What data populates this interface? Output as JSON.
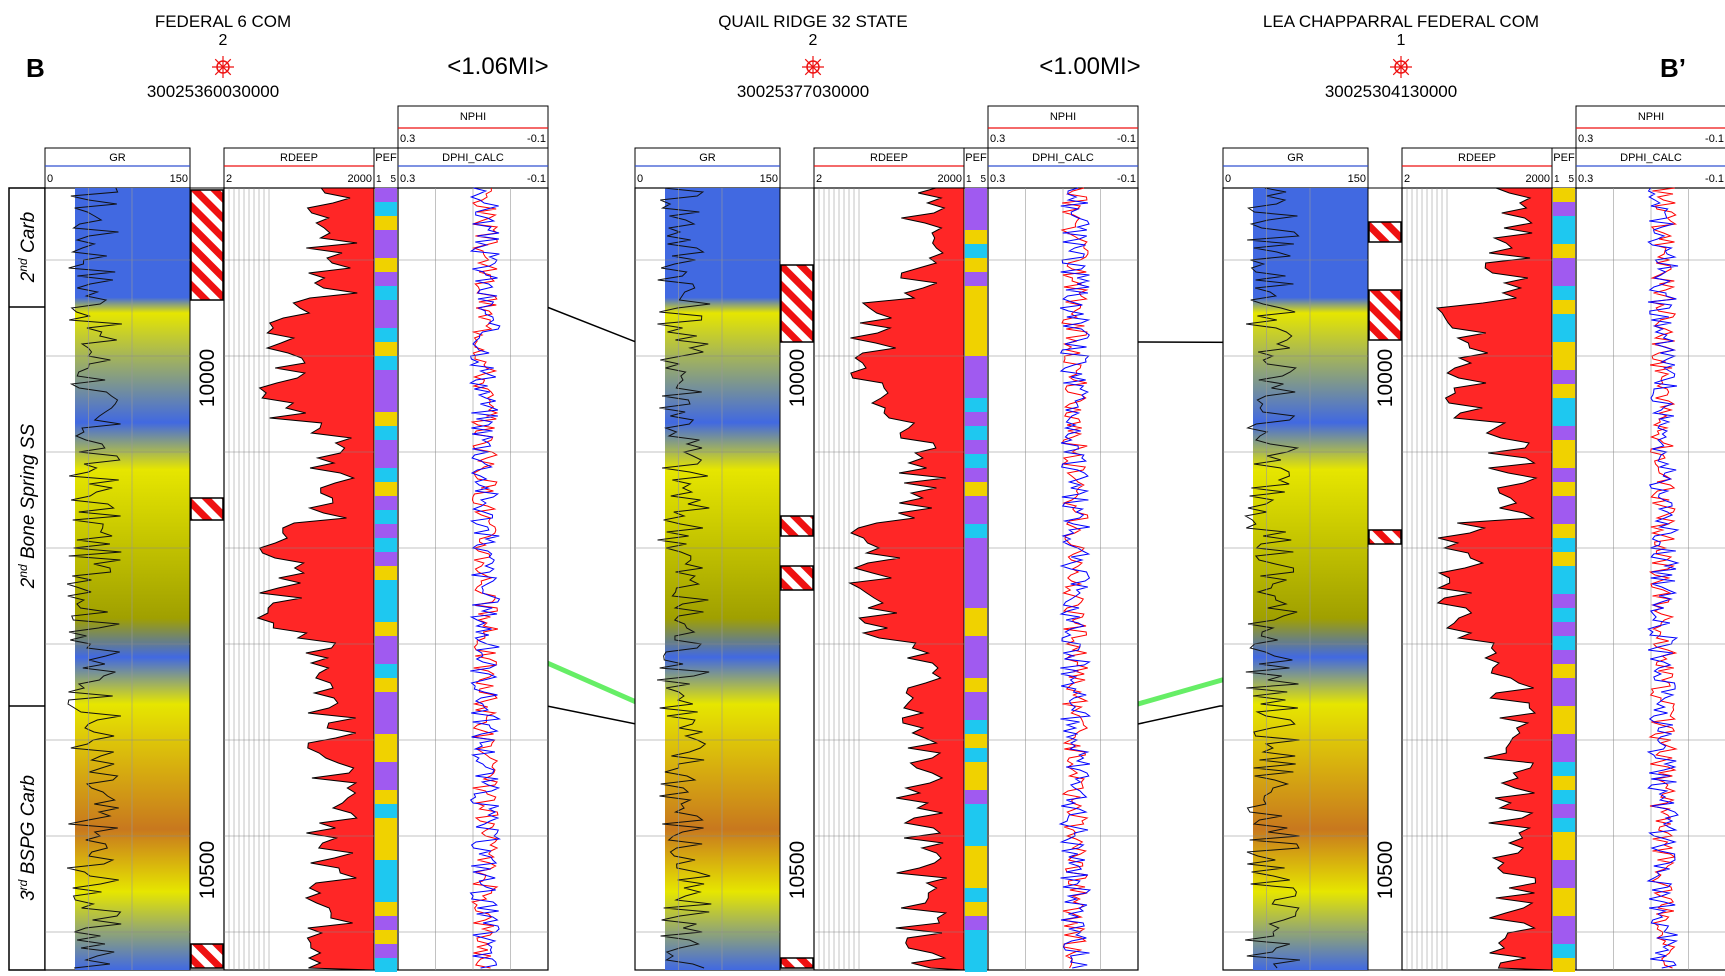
{
  "section": {
    "left_label": "B",
    "right_label": "B’",
    "spacings": [
      "<1.06MI>",
      "<1.00MI>"
    ]
  },
  "wells": [
    {
      "name": "FEDERAL 6 COM",
      "number": "2",
      "api": "30025360030000"
    },
    {
      "name": "QUAIL RIDGE 32 STATE",
      "number": "2",
      "api": "30025377030000"
    },
    {
      "name": "LEA CHAPPARRAL FEDERAL COM",
      "number": "1",
      "api": "30025304130000"
    }
  ],
  "tracks": {
    "gr": {
      "name": "GR",
      "min": "0",
      "max": "150"
    },
    "rdeep": {
      "name": "RDEEP",
      "min": "2",
      "max": "2000"
    },
    "pef": {
      "name": "PEF",
      "min": "1",
      "max": "5"
    },
    "nphi": {
      "name": "NPHI",
      "min": "0.3",
      "max": "-0.1"
    },
    "dphi": {
      "name": "DPHI_CALC",
      "min": "0.3",
      "max": "-0.1"
    }
  },
  "depth_labels": [
    "10000",
    "10500"
  ],
  "formations": [
    {
      "base": "2",
      "sup": "nd",
      "rest": " Carb"
    },
    {
      "base": "2",
      "sup": "nd",
      "rest": " Bone Spring SS"
    },
    {
      "base": "3",
      "sup": "rd",
      "rest": " BSPG Carb"
    }
  ],
  "colors": {
    "gr_low": "#4169e1",
    "gr_mid": "#e6e600",
    "gr_high": "#c8781e",
    "resistivity": "#ff0000",
    "pef_a": "#1ec8f0",
    "pef_b": "#a05af0",
    "pef_c": "#f0d200",
    "marker_green": "#66ee66",
    "marker_red_dash": "#ee1111",
    "nphi_curve": "#ff0000",
    "dphi_curve": "#0000ff"
  }
}
